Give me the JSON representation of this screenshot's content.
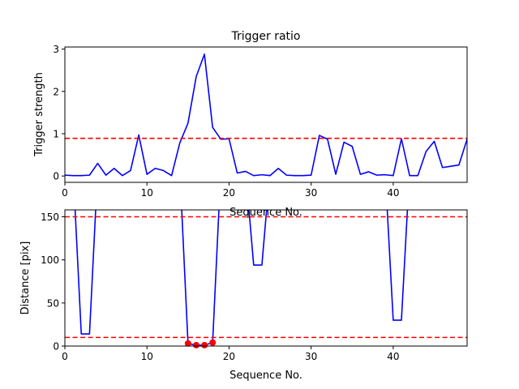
{
  "chart_data": [
    {
      "type": "line",
      "title": "Trigger ratio",
      "xlabel": "Sequence No.",
      "ylabel": "Trigger strength",
      "xlim": [
        0,
        49
      ],
      "ylim": [
        -0.15,
        3.05
      ],
      "xticks": [
        0,
        10,
        20,
        30,
        40
      ],
      "yticks": [
        0,
        1,
        2,
        3
      ],
      "grid": false,
      "x": [
        0,
        1,
        2,
        3,
        4,
        5,
        6,
        7,
        8,
        9,
        10,
        11,
        12,
        13,
        14,
        15,
        16,
        17,
        18,
        19,
        20,
        21,
        22,
        23,
        24,
        25,
        26,
        27,
        28,
        29,
        30,
        31,
        32,
        33,
        34,
        35,
        36,
        37,
        38,
        39,
        40,
        41,
        42,
        43,
        44,
        45,
        46,
        47,
        48,
        49
      ],
      "series": [
        {
          "color": "#0000ff",
          "values": [
            0.02,
            0.01,
            0.01,
            0.02,
            0.3,
            0.02,
            0.18,
            0.01,
            0.13,
            0.97,
            0.04,
            0.18,
            0.13,
            0.01,
            0.78,
            1.25,
            2.35,
            2.88,
            1.15,
            0.87,
            0.88,
            0.07,
            0.11,
            0.01,
            0.03,
            0.01,
            0.18,
            0.02,
            0.01,
            0.01,
            0.02,
            0.96,
            0.87,
            0.04,
            0.8,
            0.7,
            0.04,
            0.1,
            0.02,
            0.03,
            0.01,
            0.88,
            0.01,
            0.01,
            0.58,
            0.82,
            0.2,
            0.23,
            0.26,
            0.87
          ]
        }
      ],
      "threshold": {
        "value": 0.89,
        "color": "#ff0000",
        "style": "dashed"
      }
    },
    {
      "type": "line",
      "title": "",
      "xlabel": "Sequence No.",
      "ylabel": "Distance [pix]",
      "xlim": [
        0,
        49
      ],
      "ylim": [
        0,
        158
      ],
      "xticks": [
        0,
        10,
        20,
        30,
        40
      ],
      "yticks": [
        0,
        50,
        100,
        150
      ],
      "grid": false,
      "x": [
        0,
        1,
        2,
        3,
        4,
        5,
        6,
        7,
        8,
        9,
        10,
        11,
        12,
        13,
        14,
        15,
        16,
        17,
        18,
        19,
        20,
        21,
        22,
        23,
        24,
        25,
        26,
        27,
        28,
        29,
        30,
        31,
        32,
        33,
        34,
        35,
        36,
        37,
        38,
        39,
        40,
        41,
        42,
        43,
        44,
        45,
        46,
        47,
        48,
        49
      ],
      "series": [
        {
          "color": "#0000ff",
          "values": [
            null,
            null,
            14,
            14,
            null,
            null,
            null,
            null,
            null,
            null,
            null,
            null,
            null,
            null,
            null,
            3,
            1,
            1,
            4,
            null,
            null,
            null,
            null,
            94,
            94,
            null,
            null,
            null,
            null,
            null,
            null,
            null,
            null,
            null,
            null,
            null,
            null,
            null,
            null,
            null,
            30,
            30,
            null,
            null,
            null,
            null,
            null,
            null,
            null,
            null
          ]
        }
      ],
      "highlight_points": {
        "x": [
          15,
          16,
          17,
          18
        ],
        "y": [
          3,
          1,
          1,
          4
        ],
        "color": "#ff0000"
      },
      "thresholds": [
        {
          "value": 150,
          "color": "#ff0000",
          "style": "dashed"
        },
        {
          "value": 10,
          "color": "#ff0000",
          "style": "dashed"
        }
      ]
    }
  ]
}
